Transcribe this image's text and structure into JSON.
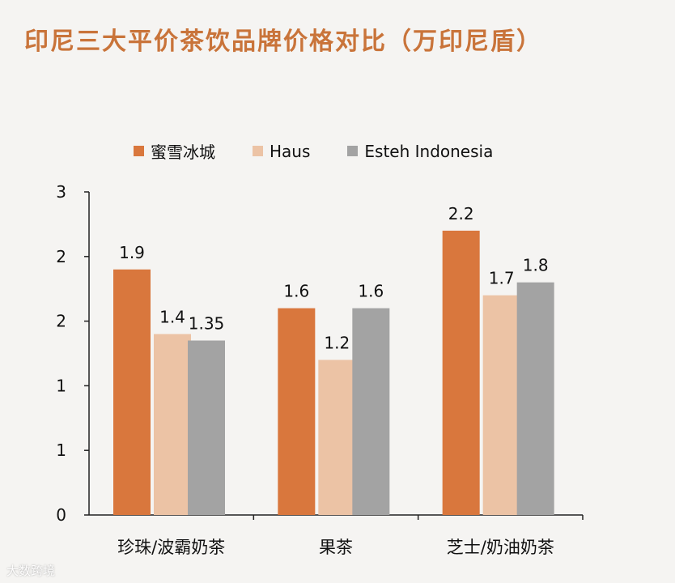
{
  "title": "印尼三大平价茶饮品牌价格对比（万印尼盾）",
  "watermark": "大数跨境",
  "colors": {
    "series_0": "#d9773d",
    "series_1": "#ecc3a5",
    "series_2": "#a3a3a3",
    "axis": "#222222",
    "title": "#c9743a"
  },
  "chart_data": {
    "type": "bar",
    "title": "印尼三大平价茶饮品牌价格对比（万印尼盾）",
    "categories": [
      "珍珠/波霸奶茶",
      "果茶",
      "芝士/奶油奶茶"
    ],
    "series": [
      {
        "name": "蜜雪冰城",
        "values": [
          1.9,
          1.6,
          2.2
        ],
        "labels": [
          "1.9",
          "1.6",
          "2.2"
        ]
      },
      {
        "name": "Haus",
        "values": [
          1.4,
          1.2,
          1.7
        ],
        "labels": [
          "1.4",
          "1.2",
          "1.7"
        ]
      },
      {
        "name": "Esteh Indonesia",
        "values": [
          1.35,
          1.6,
          1.8
        ],
        "labels": [
          "1.35",
          "1.6",
          "1.8"
        ]
      }
    ],
    "ylim": [
      0,
      2.5
    ],
    "y_ticks": [
      0,
      0.5,
      1,
      1.5,
      2,
      2.5
    ],
    "y_tick_labels": [
      "0",
      "1",
      "1",
      "2",
      "2",
      "3"
    ],
    "legend_position": "top",
    "grid": false
  }
}
